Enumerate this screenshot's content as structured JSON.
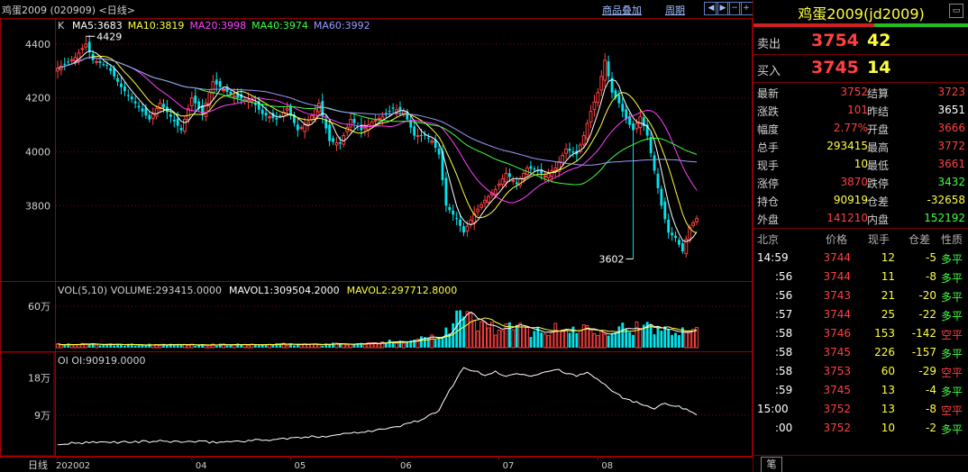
{
  "header": {
    "title": "鸡蛋2009 (020909) <日线>",
    "overlay_link": "商品叠加",
    "period_link": "周期",
    "nav_icons": [
      "arrow-left-icon",
      "arrow-right-icon",
      "zoom-out-icon",
      "zoom-in-icon"
    ]
  },
  "legend": {
    "k": "K",
    "ma5": "MA5:3683",
    "ma10": "MA10:3819",
    "ma20": "MA20:3998",
    "ma40": "MA40:3974",
    "ma60": "MA60:3992",
    "vol": "VOL(5,10) VOLUME:293415.0000",
    "mavol1": "MAVOL1:309504.2000",
    "mavol2": "MAVOL2:297712.8000",
    "oi": "OI OI:90919.0000"
  },
  "colors": {
    "up": "#ff4040",
    "down": "#00e5ee",
    "ma5": "#ffffff",
    "ma10": "#ffff40",
    "ma20": "#ff40ff",
    "ma40": "#40ff40",
    "ma60": "#9a9aff",
    "grid": "#8a0000"
  },
  "chart_data": [
    {
      "type": "candlestick",
      "ylim": [
        3560,
        4450
      ],
      "y_ticks": [
        "4400",
        "4200",
        "4000",
        "3800"
      ],
      "y_tick_values": [
        4400,
        4200,
        4000,
        3800
      ],
      "x_labels": [
        "202002",
        "04",
        "05",
        "06",
        "07",
        "08"
      ],
      "x_label_index": [
        0,
        38,
        66,
        96,
        125,
        153
      ],
      "x_bottom_caption": "日线",
      "high_annotation": {
        "text": "4429",
        "index": 8,
        "value": 4429
      },
      "low_annotation": {
        "text": "3602",
        "index": 163,
        "value": 3602
      },
      "anchors_close": [
        [
          0,
          4310
        ],
        [
          5,
          4350
        ],
        [
          8,
          4400
        ],
        [
          10,
          4340
        ],
        [
          14,
          4320
        ],
        [
          18,
          4240
        ],
        [
          22,
          4180
        ],
        [
          26,
          4120
        ],
        [
          29,
          4180
        ],
        [
          32,
          4130
        ],
        [
          35,
          4080
        ],
        [
          38,
          4200
        ],
        [
          41,
          4140
        ],
        [
          44,
          4260
        ],
        [
          47,
          4230
        ],
        [
          51,
          4200
        ],
        [
          55,
          4190
        ],
        [
          58,
          4140
        ],
        [
          62,
          4120
        ],
        [
          65,
          4160
        ],
        [
          68,
          4080
        ],
        [
          71,
          4110
        ],
        [
          74,
          4180
        ],
        [
          77,
          4040
        ],
        [
          80,
          4030
        ],
        [
          83,
          4120
        ],
        [
          86,
          4080
        ],
        [
          89,
          4110
        ],
        [
          92,
          4130
        ],
        [
          95,
          4160
        ],
        [
          98,
          4150
        ],
        [
          101,
          4060
        ],
        [
          104,
          4060
        ],
        [
          106,
          4040
        ],
        [
          108,
          3990
        ],
        [
          110,
          3800
        ],
        [
          113,
          3750
        ],
        [
          115,
          3700
        ],
        [
          118,
          3770
        ],
        [
          121,
          3820
        ],
        [
          124,
          3860
        ],
        [
          127,
          3920
        ],
        [
          130,
          3880
        ],
        [
          133,
          3940
        ],
        [
          136,
          3930
        ],
        [
          138,
          3910
        ],
        [
          141,
          3940
        ],
        [
          144,
          4010
        ],
        [
          147,
          3990
        ],
        [
          149,
          4060
        ],
        [
          151,
          4150
        ],
        [
          153,
          4220
        ],
        [
          155,
          4340
        ],
        [
          157,
          4220
        ],
        [
          159,
          4180
        ],
        [
          161,
          4120
        ],
        [
          163,
          4080
        ],
        [
          165,
          4130
        ],
        [
          167,
          4060
        ],
        [
          169,
          3930
        ],
        [
          171,
          3800
        ],
        [
          173,
          3700
        ],
        [
          175,
          3680
        ],
        [
          177,
          3630
        ],
        [
          179,
          3720
        ],
        [
          181,
          3752
        ]
      ]
    },
    {
      "type": "bar",
      "ylim": [
        0,
        890000
      ],
      "y_ticks": [
        "60万"
      ],
      "y_tick_values": [
        600000
      ],
      "anchors_volume": [
        [
          0,
          50000
        ],
        [
          30,
          40000
        ],
        [
          60,
          45000
        ],
        [
          90,
          60000
        ],
        [
          100,
          120000
        ],
        [
          108,
          180000
        ],
        [
          112,
          380000
        ],
        [
          114,
          520000
        ],
        [
          116,
          440000
        ],
        [
          118,
          360000
        ],
        [
          122,
          300000
        ],
        [
          128,
          280000
        ],
        [
          134,
          260000
        ],
        [
          140,
          250000
        ],
        [
          146,
          270000
        ],
        [
          152,
          300000
        ],
        [
          156,
          280000
        ],
        [
          162,
          300000
        ],
        [
          168,
          270000
        ],
        [
          174,
          280000
        ],
        [
          181,
          293415
        ]
      ],
      "mavol1_last": 309504.2,
      "mavol2_last": 297712.8
    },
    {
      "type": "line",
      "ylim": [
        0,
        230000
      ],
      "y_ticks": [
        "18万",
        "9万"
      ],
      "y_tick_values": [
        180000,
        90000
      ],
      "anchors_oi": [
        [
          0,
          22000
        ],
        [
          15,
          26000
        ],
        [
          30,
          28000
        ],
        [
          45,
          26000
        ],
        [
          60,
          32000
        ],
        [
          75,
          40000
        ],
        [
          85,
          50000
        ],
        [
          95,
          60000
        ],
        [
          103,
          80000
        ],
        [
          108,
          100000
        ],
        [
          111,
          150000
        ],
        [
          115,
          205000
        ],
        [
          118,
          196000
        ],
        [
          121,
          185000
        ],
        [
          124,
          195000
        ],
        [
          127,
          182000
        ],
        [
          130,
          192000
        ],
        [
          134,
          186000
        ],
        [
          138,
          192000
        ],
        [
          141,
          202000
        ],
        [
          144,
          188000
        ],
        [
          147,
          185000
        ],
        [
          150,
          192000
        ],
        [
          153,
          178000
        ],
        [
          157,
          150000
        ],
        [
          161,
          128000
        ],
        [
          165,
          118000
        ],
        [
          169,
          108000
        ],
        [
          172,
          120000
        ],
        [
          175,
          112000
        ],
        [
          178,
          105000
        ],
        [
          181,
          90919
        ]
      ]
    }
  ],
  "quote": {
    "name": "鸡蛋2009(jd2009)",
    "buy_share": 0.56,
    "ask_label": "卖出",
    "ask_price": "3754",
    "ask_vol": "42",
    "bid_label": "买入",
    "bid_price": "3745",
    "bid_vol": "14",
    "rows": [
      {
        "l1": "最新",
        "v1": "3752",
        "c1": "#ff4040",
        "l2": "结算",
        "v2": "3723",
        "c2": "#ff4040"
      },
      {
        "l1": "涨跌",
        "v1": "101",
        "c1": "#ff4040",
        "l2": "昨结",
        "v2": "3651",
        "c2": "#ffffff"
      },
      {
        "l1": "幅度",
        "v1": "2.77%",
        "c1": "#ff4040",
        "l2": "开盘",
        "v2": "3666",
        "c2": "#ff4040"
      },
      {
        "l1": "总手",
        "v1": "293415",
        "c1": "#ffff40",
        "l2": "最高",
        "v2": "3772",
        "c2": "#ff4040"
      },
      {
        "l1": "现手",
        "v1": "10",
        "c1": "#ffff40",
        "l2": "最低",
        "v2": "3661",
        "c2": "#ff4040"
      },
      {
        "l1": "涨停",
        "v1": "3870",
        "c1": "#ff4040",
        "l2": "跌停",
        "v2": "3432",
        "c2": "#40ff40"
      },
      {
        "l1": "持仓",
        "v1": "90919",
        "c1": "#ffff40",
        "l2": "仓差",
        "v2": "-32658",
        "c2": "#ffff40"
      },
      {
        "l1": "外盘",
        "v1": "141210",
        "c1": "#ff4040",
        "l2": "内盘",
        "v2": "152192",
        "c2": "#40ff40"
      }
    ]
  },
  "ticks_table": {
    "headers": [
      "北京",
      "价格",
      "现手",
      "仓差",
      "性质"
    ],
    "rows": [
      {
        "time": "14:59",
        "price": "3744",
        "vol": "12",
        "oi": "-5",
        "nature": "多平",
        "nc": "#40ff40"
      },
      {
        "time": ":56",
        "price": "3744",
        "vol": "11",
        "oi": "-8",
        "nature": "多平",
        "nc": "#40ff40"
      },
      {
        "time": ":56",
        "price": "3743",
        "vol": "21",
        "oi": "-20",
        "nature": "多平",
        "nc": "#40ff40"
      },
      {
        "time": ":57",
        "price": "3744",
        "vol": "25",
        "oi": "-22",
        "nature": "多平",
        "nc": "#40ff40"
      },
      {
        "time": ":58",
        "price": "3746",
        "vol": "153",
        "oi": "-142",
        "nature": "空平",
        "nc": "#ff4040"
      },
      {
        "time": ":58",
        "price": "3745",
        "vol": "226",
        "oi": "-157",
        "nature": "多平",
        "nc": "#40ff40"
      },
      {
        "time": ":58",
        "price": "3753",
        "vol": "60",
        "oi": "-29",
        "nature": "空平",
        "nc": "#ff4040"
      },
      {
        "time": ":59",
        "price": "3745",
        "vol": "13",
        "oi": "-4",
        "nature": "多平",
        "nc": "#40ff40"
      },
      {
        "time": "15:00",
        "price": "3752",
        "vol": "13",
        "oi": "-8",
        "nature": "空平",
        "nc": "#ff4040"
      },
      {
        "time": ":00",
        "price": "3752",
        "vol": "10",
        "oi": "-2",
        "nature": "多平",
        "nc": "#40ff40"
      }
    ],
    "bottom_tab": "笔"
  }
}
